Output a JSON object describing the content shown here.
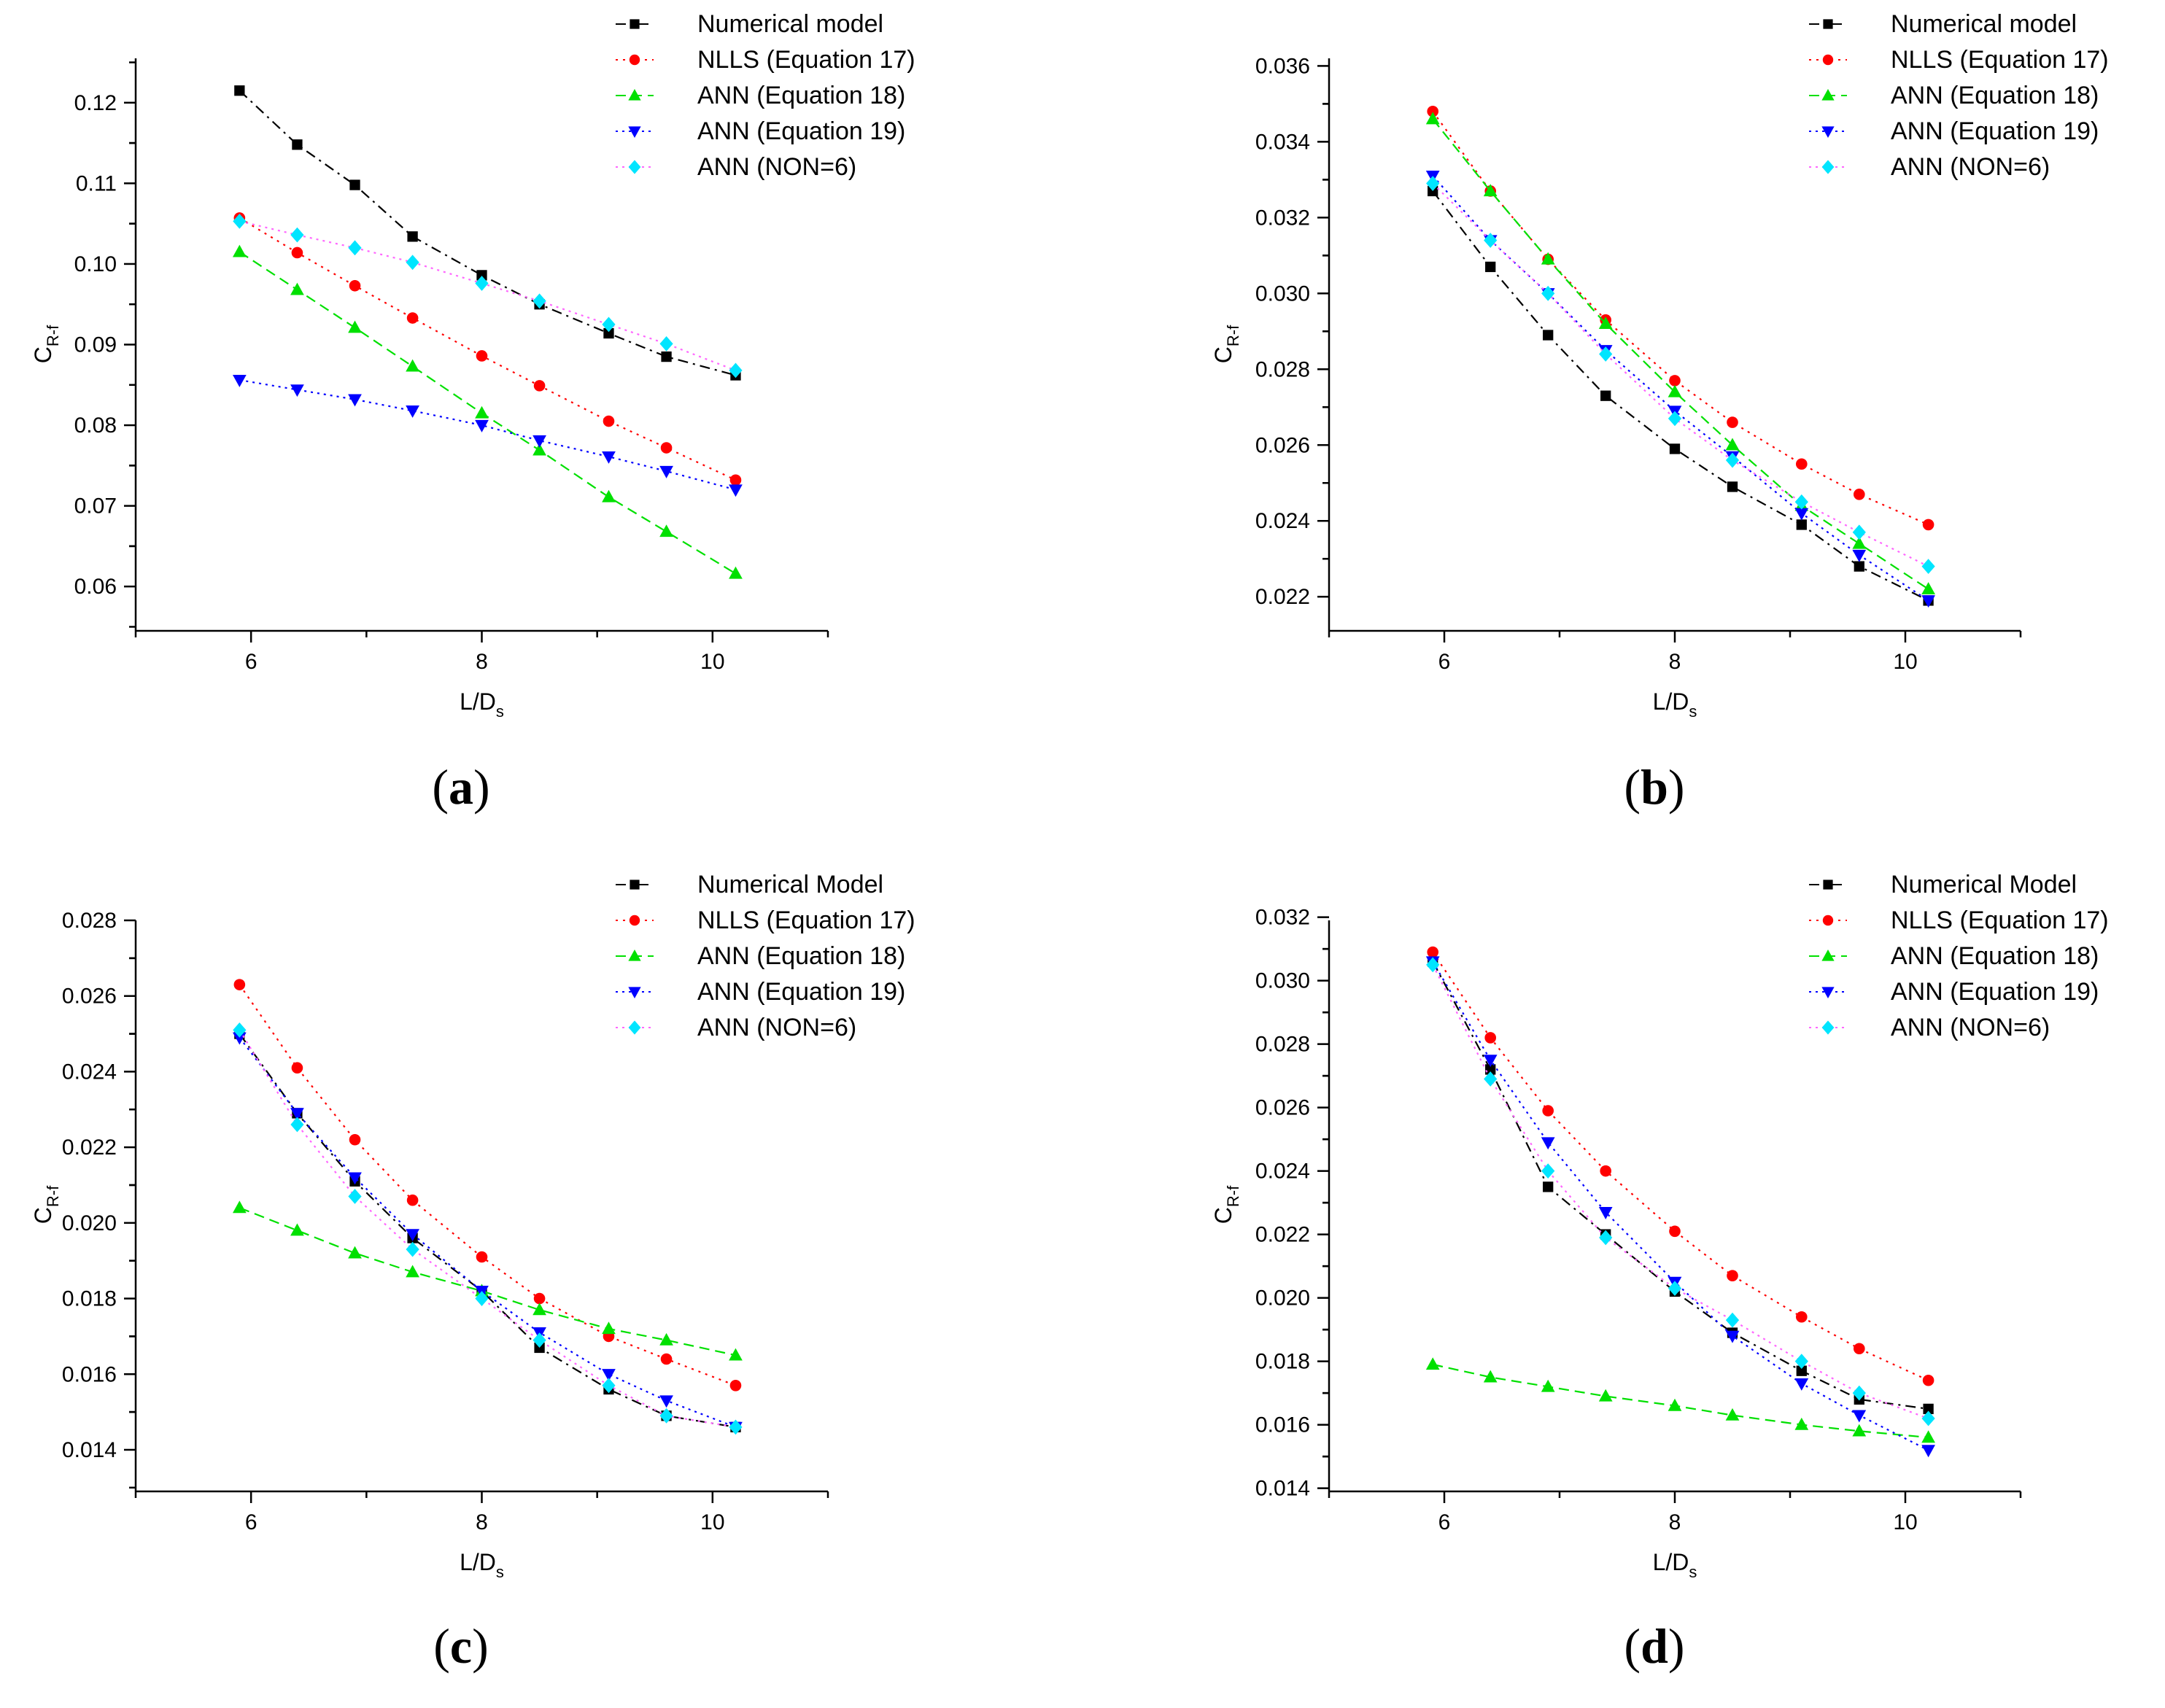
{
  "chart_data": [
    {
      "type": "line",
      "panel_label": "(a)",
      "xlabel": "L/D",
      "xlabel_sub": "s",
      "ylabel": "C",
      "ylabel_sub": "R-f",
      "xlim": [
        5,
        11
      ],
      "ylim": [
        0.0545,
        0.1255
      ],
      "xticks": [
        6,
        8,
        10
      ],
      "yticks": [
        0.06,
        0.07,
        0.08,
        0.09,
        0.1,
        0.11,
        0.12
      ],
      "ytick_labels": [
        "0.06",
        "0.07",
        "0.08",
        "0.09",
        "0.10",
        "0.11",
        "0.12"
      ],
      "legend_position": "top-right",
      "x": [
        5.9,
        6.4,
        6.9,
        7.4,
        8.0,
        8.5,
        9.1,
        9.6,
        10.2
      ],
      "series": [
        {
          "name": "Numerical model",
          "values": [
            0.1215,
            0.1148,
            0.1098,
            0.1034,
            0.0986,
            0.095,
            0.0914,
            0.0885,
            0.0862
          ]
        },
        {
          "name": "NLLS (Equation 17)",
          "values": [
            0.1057,
            0.1014,
            0.0973,
            0.0933,
            0.0886,
            0.0849,
            0.0805,
            0.0772,
            0.0732
          ]
        },
        {
          "name": "ANN (Equation 18)",
          "values": [
            0.1015,
            0.0968,
            0.0921,
            0.0873,
            0.0815,
            0.0769,
            0.0711,
            0.0668,
            0.0616
          ]
        },
        {
          "name": "ANN (Equation 19)",
          "values": [
            0.0856,
            0.0844,
            0.0832,
            0.0818,
            0.08,
            0.0781,
            0.0761,
            0.0743,
            0.072
          ]
        },
        {
          "name": "ANN (NON=6)",
          "values": [
            0.1053,
            0.1036,
            0.102,
            0.1002,
            0.0976,
            0.0954,
            0.0925,
            0.0901,
            0.0868
          ]
        }
      ]
    },
    {
      "type": "line",
      "panel_label": "(b)",
      "xlabel": "L/D",
      "xlabel_sub": "s",
      "ylabel": "C",
      "ylabel_sub": "R-f",
      "xlim": [
        5,
        11
      ],
      "ylim": [
        0.0211,
        0.0362
      ],
      "xticks": [
        6,
        8,
        10
      ],
      "yticks": [
        0.022,
        0.024,
        0.026,
        0.028,
        0.03,
        0.032,
        0.034,
        0.036
      ],
      "ytick_labels": [
        "0.022",
        "0.024",
        "0.026",
        "0.028",
        "0.030",
        "0.032",
        "0.034",
        "0.036"
      ],
      "legend_position": "top-right",
      "x": [
        5.9,
        6.4,
        6.9,
        7.4,
        8.0,
        8.5,
        9.1,
        9.6,
        10.2
      ],
      "series": [
        {
          "name": "Numerical model",
          "values": [
            0.0327,
            0.0307,
            0.0289,
            0.0273,
            0.0259,
            0.0249,
            0.0239,
            0.0228,
            0.0219
          ]
        },
        {
          "name": "NLLS (Equation 17)",
          "values": [
            0.0348,
            0.0327,
            0.0309,
            0.0293,
            0.0277,
            0.0266,
            0.0255,
            0.0247,
            0.0239
          ]
        },
        {
          "name": "ANN (Equation 18)",
          "values": [
            0.0346,
            0.0327,
            0.0309,
            0.0292,
            0.0274,
            0.026,
            0.0244,
            0.0234,
            0.0222
          ]
        },
        {
          "name": "ANN (Equation 19)",
          "values": [
            0.0331,
            0.0314,
            0.03,
            0.0285,
            0.0269,
            0.0257,
            0.0242,
            0.0231,
            0.0219
          ]
        },
        {
          "name": "ANN (NON=6)",
          "values": [
            0.0329,
            0.0314,
            0.03,
            0.0284,
            0.0267,
            0.0256,
            0.0245,
            0.0237,
            0.0228
          ]
        }
      ]
    },
    {
      "type": "line",
      "panel_label": "(c)",
      "xlabel": "L/D",
      "xlabel_sub": "s",
      "ylabel": "C",
      "ylabel_sub": "R-f",
      "xlim": [
        5,
        11
      ],
      "ylim": [
        0.0129,
        0.028
      ],
      "xticks": [
        6,
        8,
        10
      ],
      "yticks": [
        0.014,
        0.016,
        0.018,
        0.02,
        0.022,
        0.024,
        0.026,
        0.028
      ],
      "ytick_labels": [
        "0.014",
        "0.016",
        "0.018",
        "0.020",
        "0.022",
        "0.024",
        "0.026",
        "0.028"
      ],
      "legend_position": "top-right",
      "x": [
        5.9,
        6.4,
        6.9,
        7.4,
        8.0,
        8.5,
        9.1,
        9.6,
        10.2
      ],
      "series": [
        {
          "name": "Numerical Model",
          "values": [
            0.025,
            0.0229,
            0.0211,
            0.0196,
            0.0182,
            0.0167,
            0.0156,
            0.0149,
            0.0146
          ]
        },
        {
          "name": "NLLS (Equation 17)",
          "values": [
            0.0263,
            0.0241,
            0.0222,
            0.0206,
            0.0191,
            0.018,
            0.017,
            0.0164,
            0.0157
          ]
        },
        {
          "name": "ANN (Equation 18)",
          "values": [
            0.0204,
            0.0198,
            0.0192,
            0.0187,
            0.0182,
            0.0177,
            0.0172,
            0.0169,
            0.0165
          ]
        },
        {
          "name": "ANN (Equation 19)",
          "values": [
            0.0249,
            0.0229,
            0.0212,
            0.0197,
            0.0182,
            0.0171,
            0.016,
            0.0153,
            0.0146
          ]
        },
        {
          "name": "ANN (NON=6)",
          "values": [
            0.0251,
            0.0226,
            0.0207,
            0.0193,
            0.018,
            0.0169,
            0.0157,
            0.0149,
            0.0146
          ]
        }
      ]
    },
    {
      "type": "line",
      "panel_label": "(d)",
      "xlabel": "L/D",
      "xlabel_sub": "s",
      "ylabel": "C",
      "ylabel_sub": "R-f",
      "xlim": [
        5,
        11
      ],
      "ylim": [
        0.0139,
        0.0319
      ],
      "xticks": [
        6,
        8,
        10
      ],
      "yticks": [
        0.014,
        0.016,
        0.018,
        0.02,
        0.022,
        0.024,
        0.026,
        0.028,
        0.03,
        0.032
      ],
      "ytick_labels": [
        "0.014",
        "0.016",
        "0.018",
        "0.020",
        "0.022",
        "0.024",
        "0.026",
        "0.028",
        "0.030",
        "0.032"
      ],
      "legend_position": "top-right",
      "x": [
        5.9,
        6.4,
        6.9,
        7.4,
        8.0,
        8.5,
        9.1,
        9.6,
        10.2
      ],
      "series": [
        {
          "name": "Numerical Model",
          "values": [
            0.0306,
            0.0272,
            0.0235,
            0.022,
            0.0202,
            0.0189,
            0.0177,
            0.0168,
            0.0165
          ]
        },
        {
          "name": "NLLS (Equation 17)",
          "values": [
            0.0309,
            0.0282,
            0.0259,
            0.024,
            0.0221,
            0.0207,
            0.0194,
            0.0184,
            0.0174
          ]
        },
        {
          "name": "ANN (Equation 18)",
          "values": [
            0.0179,
            0.0175,
            0.0172,
            0.0169,
            0.0166,
            0.0163,
            0.016,
            0.0158,
            0.0156
          ]
        },
        {
          "name": "ANN (Equation 19)",
          "values": [
            0.0306,
            0.0275,
            0.0249,
            0.0227,
            0.0205,
            0.0188,
            0.0173,
            0.0163,
            0.0152
          ]
        },
        {
          "name": "ANN (NON=6)",
          "values": [
            0.0305,
            0.0269,
            0.024,
            0.0219,
            0.0203,
            0.0193,
            0.018,
            0.017,
            0.0162
          ]
        }
      ]
    }
  ],
  "series_styles": [
    {
      "color": "#000000",
      "marker": "square",
      "dash": "14,7,3,7"
    },
    {
      "color": "#ff0000",
      "marker": "circle",
      "dash": "3,7"
    },
    {
      "color": "#00e000",
      "marker": "triangle-up",
      "dash": "14,8"
    },
    {
      "color": "#0000ff",
      "marker": "triangle-down",
      "dash": "3,6"
    },
    {
      "color": "#ff66ff",
      "marker_color": "#00e5ff",
      "marker": "diamond",
      "dash": "3,6"
    }
  ]
}
